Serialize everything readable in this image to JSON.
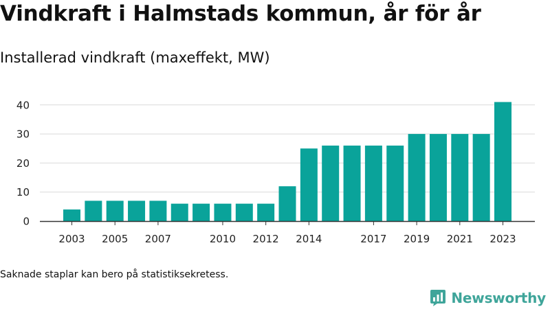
{
  "header": {
    "title": "Vindkraft i Halmstads kommun, år för år",
    "subtitle": "Installerad vindkraft (maxeffekt, MW)"
  },
  "footnote": "Saknade staplar kan bero på statistiksekretess.",
  "brand": {
    "name": "Newsworthy",
    "icon": "newsworthy-logo-icon",
    "color": "#3fa59a"
  },
  "colors": {
    "bar": "#0aa39a",
    "grid": "#d9d9d9",
    "axis": "#333333"
  },
  "chart_data": {
    "type": "bar",
    "x": [
      2003,
      2004,
      2005,
      2006,
      2007,
      2008,
      2009,
      2010,
      2011,
      2012,
      2013,
      2014,
      2015,
      2016,
      2017,
      2018,
      2019,
      2020,
      2021,
      2022,
      2023
    ],
    "values": [
      4,
      7,
      7,
      7,
      7,
      6,
      6,
      6,
      6,
      6,
      12,
      25,
      26,
      26,
      26,
      26,
      30,
      30,
      30,
      30,
      41
    ],
    "x_tick_labels": [
      "2003",
      "2005",
      "2007",
      "2010",
      "2012",
      "2014",
      "2017",
      "2019",
      "2021",
      "2023"
    ],
    "y_ticks": [
      0,
      10,
      20,
      30,
      40
    ],
    "ylim": [
      0,
      43
    ],
    "grid": true,
    "legend": false
  }
}
